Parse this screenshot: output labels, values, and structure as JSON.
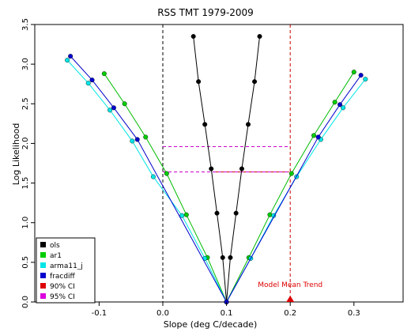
{
  "chart_data": {
    "type": "line",
    "title": "RSS TMT 1979-2009",
    "xlabel": "Slope (deg C/decade)",
    "ylabel": "Log Likelihood",
    "xlim": [
      -0.25,
      0.37
    ],
    "ylim": [
      0.0,
      3.5
    ],
    "xticks": [
      -0.1,
      0.0,
      0.1,
      0.2,
      0.3
    ],
    "xtick_labels": [
      "-0.1",
      "0.0",
      "0.1",
      "0.2",
      "0.3"
    ],
    "yticks": [
      0.0,
      0.5,
      1.0,
      1.5,
      2.0,
      2.5,
      3.0,
      3.5
    ],
    "ytick_labels": [
      "0.0",
      "0.5",
      "1.0",
      "1.5",
      "2.0",
      "2.5",
      "3.0",
      "3.5"
    ],
    "grid": false,
    "legend_position": "bottom-left",
    "series": [
      {
        "name": "ols",
        "color": "#000000",
        "marker_fill": "#000000",
        "x": [
          0.048,
          0.056,
          0.066,
          0.076,
          0.085,
          0.094,
          0.1,
          0.106,
          0.115,
          0.124,
          0.134,
          0.144,
          0.152
        ],
        "y": [
          3.35,
          2.78,
          2.24,
          1.68,
          1.12,
          0.56,
          0.0,
          0.56,
          1.12,
          1.68,
          2.24,
          2.78,
          3.35
        ]
      },
      {
        "name": "ar1",
        "color": "#00bb00",
        "marker_fill": "#00cc00",
        "x": [
          -0.092,
          -0.06,
          -0.027,
          0.006,
          0.037,
          0.07,
          0.1,
          0.135,
          0.168,
          0.202,
          0.237,
          0.27,
          0.3
        ],
        "y": [
          2.88,
          2.5,
          2.08,
          1.62,
          1.1,
          0.56,
          0.0,
          0.56,
          1.1,
          1.62,
          2.1,
          2.52,
          2.9
        ]
      },
      {
        "name": "arma11_j",
        "color": "#00e5e5",
        "marker_fill": "#00e5e5",
        "x": [
          -0.15,
          -0.117,
          -0.083,
          -0.048,
          -0.015,
          0.03,
          0.066,
          0.1,
          0.138,
          0.174,
          0.21,
          0.248,
          0.283,
          0.318
        ],
        "y": [
          3.05,
          2.76,
          2.42,
          2.03,
          1.58,
          1.09,
          0.55,
          0.0,
          0.55,
          1.09,
          1.58,
          2.05,
          2.45,
          2.81
        ]
      },
      {
        "name": "fracdiff",
        "color": "#0000cc",
        "marker_fill": "#0000cc",
        "x": [
          -0.145,
          -0.111,
          -0.077,
          -0.04,
          0.1,
          0.244,
          0.278,
          0.311
        ],
        "y": [
          3.1,
          2.8,
          2.45,
          2.05,
          0.0,
          2.08,
          2.49,
          2.86
        ]
      }
    ],
    "reference_lines": [
      {
        "type": "vertical",
        "x": 0.0,
        "style": "dashed",
        "color": "#000000"
      },
      {
        "type": "vertical",
        "x": 0.2,
        "style": "dashed",
        "color": "#cc0000"
      },
      {
        "type": "segment",
        "x1": 0.08,
        "x2": 0.198,
        "y": 1.64,
        "style": "solid",
        "color": "#cc0000"
      },
      {
        "type": "segment",
        "x1": 0.0,
        "x2": 0.198,
        "y": 1.64,
        "style": "dashed",
        "color": "#cc00cc"
      },
      {
        "type": "segment",
        "x1": 0.0,
        "x2": 0.198,
        "y": 1.96,
        "style": "dashed",
        "color": "#cc00cc"
      }
    ],
    "legend": [
      {
        "label": "ols",
        "color": "#000000"
      },
      {
        "label": "ar1",
        "color": "#00cc00"
      },
      {
        "label": "arma11_j",
        "color": "#00e5e5"
      },
      {
        "label": "fracdiff",
        "color": "#0000cc"
      },
      {
        "label": "90% CI",
        "color": "#dd0000"
      },
      {
        "label": "95% CI",
        "color": "#dd00dd"
      }
    ],
    "annotations": [
      {
        "text": "Model Mean Trend",
        "x": 0.2,
        "y": 0.0,
        "color": "#dd0000",
        "marker": "triangle"
      }
    ]
  }
}
